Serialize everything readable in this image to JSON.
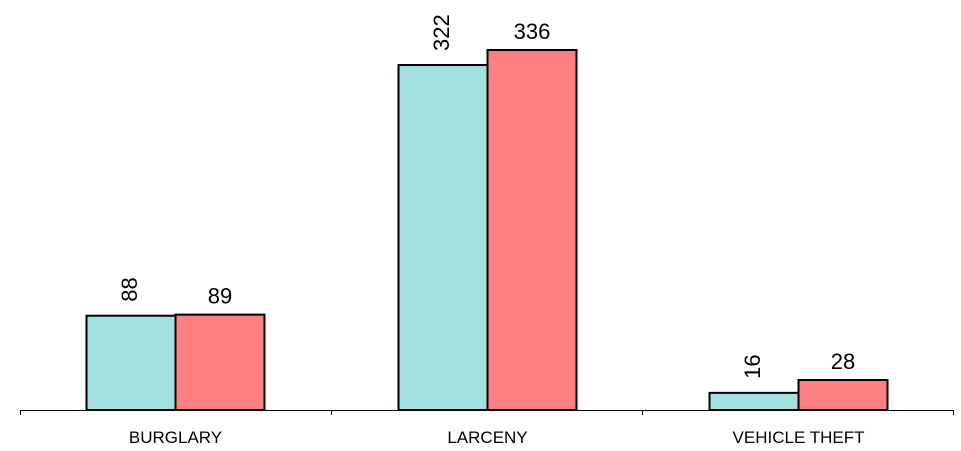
{
  "chart_data": {
    "type": "bar",
    "categories": [
      "BURGLARY",
      "LARCENY",
      "VEHICLE THEFT"
    ],
    "series": [
      {
        "values": [
          88,
          322,
          16
        ],
        "color": "#a3e0e0"
      },
      {
        "values": [
          89,
          336,
          28
        ],
        "color": "#ff8080"
      }
    ],
    "value_labels": [
      [
        "88",
        "322",
        "16"
      ],
      [
        "89",
        "336",
        "28"
      ]
    ],
    "first_series_labels_rotated": true,
    "ylim": [
      0,
      336
    ],
    "grid": false,
    "legend": "none",
    "title": "",
    "xlabel": "",
    "ylabel": ""
  }
}
